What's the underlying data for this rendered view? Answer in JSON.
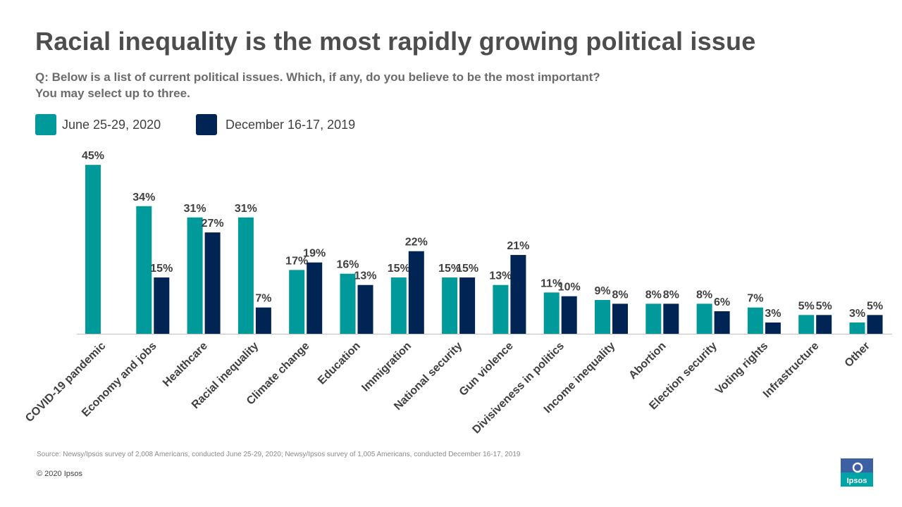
{
  "page": {
    "title": "Racial inequality is the most rapidly growing political issue",
    "question_line1": "Q: Below is a list of current political issues. Which, if any, do you believe to be the most important?",
    "question_line2": "You may select up to three.",
    "source": "Source: Newsy/Ipsos survey of 2,008 Americans, conducted June 25-29, 2020; Newsy/Ipsos survey of 1,005 Americans, conducted December 16-17, 2019",
    "copyright": "© 2020 Ipsos",
    "logo_text": "Ipsos"
  },
  "colors": {
    "june_2020": "#009a9a",
    "dec_2019": "#002554",
    "axis": "#bfbfbf",
    "label": "#404040",
    "logo_top": "#3d5fa3",
    "logo_bottom": "#00a4a6"
  },
  "chart_data": {
    "type": "bar",
    "title": "Racial inequality is the most rapidly growing political issue",
    "xlabel": "",
    "ylabel": "",
    "ylim": [
      0,
      50
    ],
    "grid": false,
    "legend_position": "top-left",
    "categories": [
      "COVID-19 pandemic",
      "Economy and jobs",
      "Healthcare",
      "Racial inequality",
      "Climate change",
      "Education",
      "Immigration",
      "National security",
      "Gun violence",
      "Divisiveness in politics",
      "Income inequality",
      "Abortion",
      "Election security",
      "Voting rights",
      "Infrastructure",
      "Other"
    ],
    "series": [
      {
        "name": "June 25-29, 2020",
        "color": "#009a9a",
        "values": [
          45,
          34,
          31,
          31,
          17,
          16,
          15,
          15,
          13,
          11,
          9,
          8,
          8,
          7,
          5,
          3
        ]
      },
      {
        "name": "December 16-17, 2019",
        "color": "#002554",
        "values": [
          null,
          15,
          27,
          7,
          19,
          13,
          22,
          15,
          21,
          10,
          8,
          8,
          6,
          3,
          5,
          5
        ]
      }
    ]
  }
}
